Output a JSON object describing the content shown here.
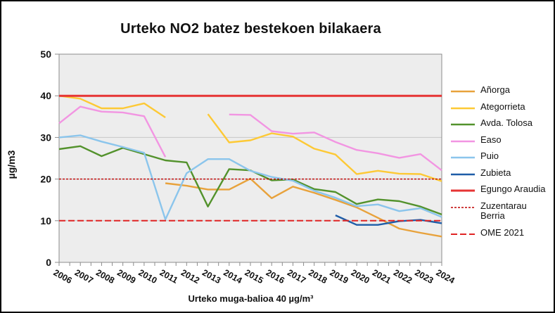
{
  "window": {
    "border_color": "#000000",
    "background": "#ffffff"
  },
  "chart_data": {
    "type": "line",
    "title": "Urteko NO2 batez bestekoen bilakaera",
    "ylabel": "µg/m3",
    "xlabel": "Urteko muga-balioa 40 µg/m³",
    "ylim": [
      0,
      50
    ],
    "yticks": [
      0,
      10,
      20,
      30,
      40,
      50
    ],
    "grid": true,
    "grid_color": "#c7c7c7",
    "plot_bg": "#ededed",
    "axis_color": "#8c8c8c",
    "legend_position": "right",
    "categories": [
      2006,
      2007,
      2008,
      2009,
      2010,
      2011,
      2012,
      2013,
      2014,
      2015,
      2016,
      2017,
      2018,
      2019,
      2020,
      2021,
      2022,
      2023,
      2024
    ],
    "series": [
      {
        "name": "Añorga",
        "color": "#e8a23c",
        "width": 2.4,
        "values": [
          null,
          null,
          null,
          null,
          null,
          19.0,
          18.4,
          17.5,
          17.5,
          20.1,
          15.4,
          18.2,
          16.7,
          15.0,
          13.2,
          10.7,
          8.1,
          7.1,
          6.2
        ]
      },
      {
        "name": "Ategorrieta",
        "color": "#fdc935",
        "width": 2.4,
        "values": [
          40.0,
          39.3,
          37.0,
          37.0,
          38.2,
          34.8,
          null,
          35.6,
          28.8,
          29.3,
          31.0,
          30.2,
          27.3,
          25.9,
          21.2,
          22.0,
          21.3,
          21.2,
          19.5
        ]
      },
      {
        "name": "Avda. Tolosa",
        "color": "#53922c",
        "width": 2.4,
        "values": [
          27.2,
          27.9,
          25.5,
          27.5,
          26.0,
          24.5,
          24.0,
          13.4,
          22.4,
          22.1,
          19.7,
          19.9,
          17.6,
          16.9,
          14.0,
          15.1,
          14.7,
          13.4,
          11.5
        ]
      },
      {
        "name": "Easo",
        "color": "#f295e2",
        "width": 2.4,
        "values": [
          33.4,
          37.4,
          36.2,
          36.0,
          35.1,
          25.3,
          null,
          null,
          35.5,
          35.4,
          31.5,
          30.9,
          31.2,
          28.9,
          27.0,
          26.2,
          25.1,
          26.0,
          22.1
        ]
      },
      {
        "name": "Puio",
        "color": "#8bc5ec",
        "width": 2.4,
        "values": [
          30.0,
          30.5,
          29.0,
          27.7,
          26.3,
          10.3,
          21.4,
          24.8,
          24.8,
          22.0,
          20.5,
          19.6,
          17.2,
          15.5,
          13.5,
          13.9,
          12.3,
          13.0,
          10.9
        ]
      },
      {
        "name": "Zubieta",
        "color": "#1e5da8",
        "width": 2.4,
        "values": [
          null,
          null,
          null,
          null,
          null,
          null,
          null,
          null,
          null,
          null,
          null,
          null,
          null,
          11.3,
          9.0,
          9.0,
          9.9,
          10.2,
          9.4
        ]
      },
      {
        "name": "Egungo Araudia",
        "color": "#e63434",
        "width": 3,
        "constant": 40
      },
      {
        "name": "Zuzentarau Berria",
        "color": "#bf0000",
        "width": 1.4,
        "dash": "3 2",
        "constant": 20
      },
      {
        "name": "OME 2021",
        "color": "#e02424",
        "width": 2,
        "dash": "9 4",
        "constant": 10
      }
    ]
  }
}
